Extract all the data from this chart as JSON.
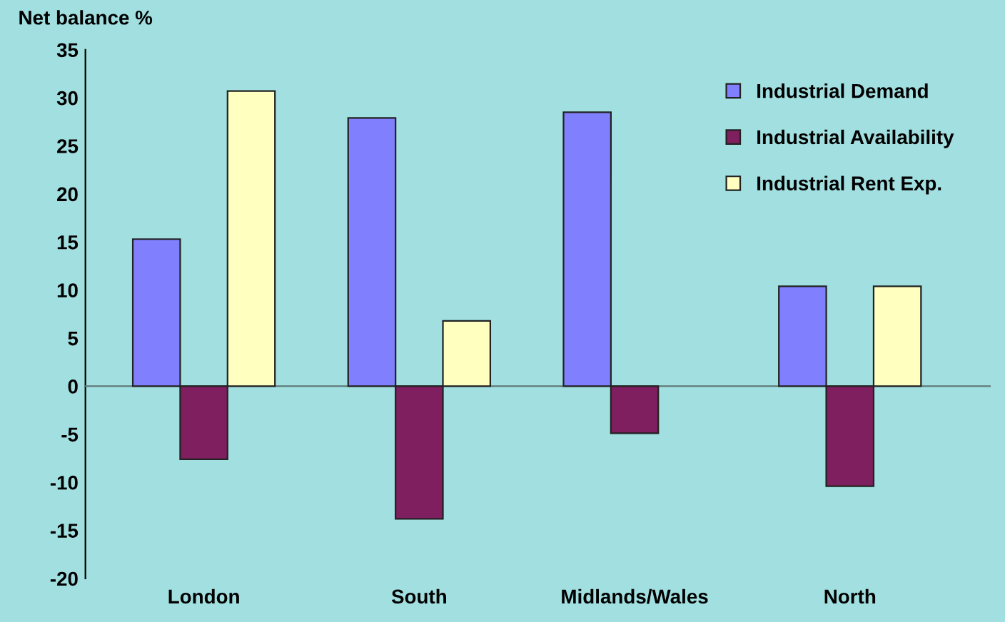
{
  "chart_data": {
    "type": "bar",
    "ylabel": "Net balance %",
    "categories": [
      "London",
      "South",
      "Midlands/Wales",
      "North"
    ],
    "series": [
      {
        "name": "Industrial Demand",
        "color": "#8080ff",
        "values": [
          15.3,
          27.9,
          28.5,
          10.4
        ]
      },
      {
        "name": "Industrial Availability",
        "color": "#7f1f5f",
        "values": [
          -7.6,
          -13.8,
          -4.9,
          -10.4
        ]
      },
      {
        "name": "Industrial Rent Exp.",
        "color": "#ffffc0",
        "values": [
          30.7,
          6.8,
          null,
          10.4
        ]
      }
    ],
    "ylim": [
      -20,
      35
    ],
    "yticks": [
      -20,
      -15,
      -10,
      -5,
      0,
      5,
      10,
      15,
      20,
      25,
      30,
      35
    ],
    "legend": "top right"
  }
}
